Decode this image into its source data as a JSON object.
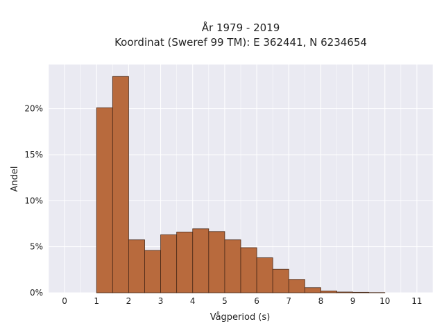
{
  "chart_data": {
    "type": "bar",
    "title_lines": [
      "År 1979 - 2019",
      "Koordinat (Sweref 99 TM): E 362441, N 6234654"
    ],
    "xlabel": "Vågperiod (s)",
    "ylabel": "Andel",
    "x_ticks": [
      "0",
      "1",
      "2",
      "3",
      "4",
      "5",
      "6",
      "7",
      "8",
      "9",
      "10",
      "11"
    ],
    "y_ticks": [
      {
        "value": 0,
        "label": "0%"
      },
      {
        "value": 5,
        "label": "5%"
      },
      {
        "value": 10,
        "label": "10%"
      },
      {
        "value": 15,
        "label": "15%"
      },
      {
        "value": 20,
        "label": "20%"
      }
    ],
    "xlim": [
      -0.5,
      11.5
    ],
    "ylim": [
      0,
      24.8
    ],
    "bin_width": 0.5,
    "bins": [
      {
        "start": 1.0,
        "value": 20.1
      },
      {
        "start": 1.5,
        "value": 23.5
      },
      {
        "start": 2.0,
        "value": 5.75
      },
      {
        "start": 2.5,
        "value": 4.6
      },
      {
        "start": 3.0,
        "value": 6.3
      },
      {
        "start": 3.5,
        "value": 6.6
      },
      {
        "start": 4.0,
        "value": 6.95
      },
      {
        "start": 4.5,
        "value": 6.65
      },
      {
        "start": 5.0,
        "value": 5.75
      },
      {
        "start": 5.5,
        "value": 4.9
      },
      {
        "start": 6.0,
        "value": 3.8
      },
      {
        "start": 6.5,
        "value": 2.55
      },
      {
        "start": 7.0,
        "value": 1.45
      },
      {
        "start": 7.5,
        "value": 0.55
      },
      {
        "start": 8.0,
        "value": 0.2
      },
      {
        "start": 8.5,
        "value": 0.08
      },
      {
        "start": 9.0,
        "value": 0.05
      },
      {
        "start": 9.5,
        "value": 0.02
      }
    ],
    "grid": true,
    "colors": {
      "bar_fill": "#b86a3d",
      "bar_stroke": "#4a2a18",
      "plot_background": "#eaeaf2",
      "grid": "#ffffff"
    }
  }
}
